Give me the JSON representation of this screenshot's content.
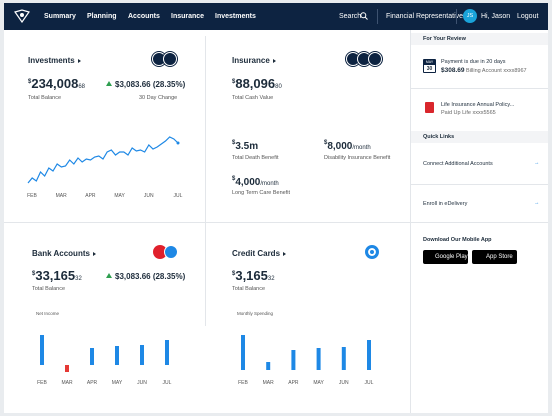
{
  "nav": {
    "items": [
      "Summary",
      "Planning",
      "Accounts",
      "Insurance",
      "Investments"
    ],
    "search": "Search",
    "representative": "Financial Representative",
    "initials": "JS",
    "greeting": "Hi, Jason",
    "logout": "Logout"
  },
  "investments": {
    "title": "Investments",
    "balance": {
      "currency": "$",
      "whole": "234,008",
      "cents": "68"
    },
    "balance_label": "Total Balance",
    "change": "$3,083.66 (28.35%)",
    "change_label": "30 Day Change",
    "chart": {
      "type": "line",
      "values": [
        4,
        9,
        6,
        15,
        11,
        19,
        16,
        23,
        20,
        21,
        27,
        23,
        29,
        25,
        28,
        27,
        30,
        31,
        28,
        35,
        37,
        32,
        35,
        35,
        32,
        39,
        36,
        37,
        35,
        42,
        38,
        40,
        43,
        46,
        50,
        48,
        44
      ],
      "ylim": [
        0,
        52
      ],
      "color": "#1e88e5",
      "categories": [
        "FEB",
        "MAR",
        "APR",
        "MAY",
        "JUN",
        "JUL"
      ]
    }
  },
  "insurance": {
    "title": "Insurance",
    "cash": {
      "currency": "$",
      "whole": "88,096",
      "cents": "80"
    },
    "cash_label": "Total Cash Value",
    "benefits": [
      {
        "amount": {
          "currency": "$",
          "whole": "3.5m",
          "unit": ""
        },
        "label": "Total Death Benefit"
      },
      {
        "amount": {
          "currency": "$",
          "whole": "8,000",
          "unit": "/month"
        },
        "label": "Disability Insurance Benefit"
      },
      {
        "amount": {
          "currency": "$",
          "whole": "4,000",
          "unit": "/month"
        },
        "label": "Long Term Care Benefit"
      }
    ]
  },
  "bank": {
    "title": "Bank Accounts",
    "balance": {
      "currency": "$",
      "whole": "33,165",
      "cents": "32"
    },
    "balance_label": "Total Balance",
    "change": "$3,083.66 (28.35%)",
    "chart": {
      "type": "bar",
      "title": "Net Income",
      "values": [
        30,
        -7,
        17,
        19,
        20,
        25
      ],
      "ylim": [
        -10,
        40
      ],
      "color": "#1e88e5",
      "negative_color": "#e53935",
      "categories": [
        "FEB",
        "MAR",
        "APR",
        "MAY",
        "JUN",
        "JUL"
      ]
    }
  },
  "credit": {
    "title": "Credit Cards",
    "balance": {
      "currency": "$",
      "whole": "3,165",
      "cents": "32"
    },
    "balance_label": "Total Balance",
    "chart": {
      "type": "bar",
      "title": "Monthly Spending",
      "values": [
        35,
        8,
        20,
        22,
        23,
        30
      ],
      "ylim": [
        0,
        40
      ],
      "color": "#1e88e5",
      "categories": [
        "FEB",
        "MAR",
        "APR",
        "MAY",
        "JUN",
        "JUL"
      ]
    }
  },
  "sidebar": {
    "review_title": "For Your Review",
    "reviews": [
      {
        "icon_top": "MAY",
        "icon_bottom": "30",
        "title": "Payment is due in 20 days",
        "amount": "$308.69",
        "detail": "Billing Account xxxx8967"
      },
      {
        "icon_top": "",
        "icon_bottom": "",
        "title": "Life Insurance Annual Policy...",
        "amount": "",
        "detail": "Paid Up Life xxxx5565"
      }
    ],
    "links_title": "Quick Links",
    "links": [
      "Connect Additional Accounts",
      "Enroll in eDelivery"
    ],
    "app_title": "Download Our Mobile App",
    "stores": [
      "Google Play",
      "App Store"
    ]
  }
}
